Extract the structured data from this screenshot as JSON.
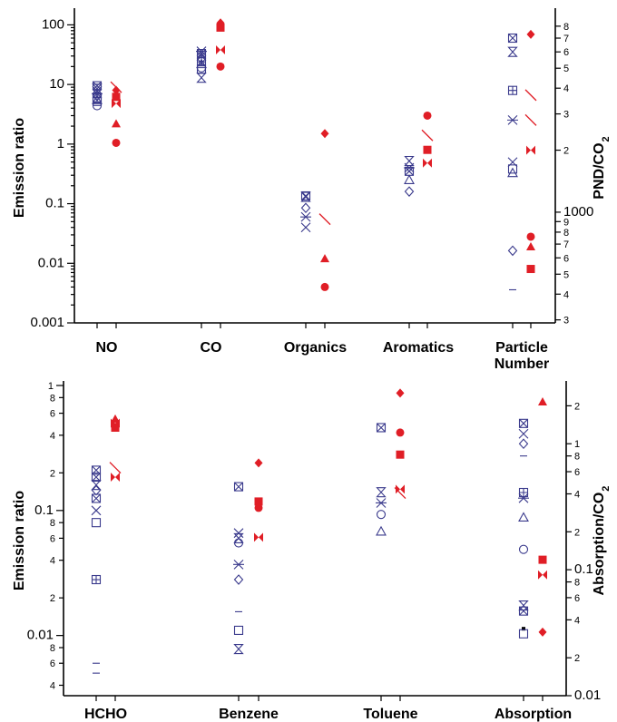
{
  "colors": {
    "blue": "#3a3a8c",
    "red": "#e01e26",
    "axis": "#000000"
  },
  "chart_data": [
    {
      "type": "scatter",
      "categories": [
        "NO",
        "CO",
        "Organics",
        "Aromatics",
        "Particle\nNumber"
      ],
      "category_lines": [
        [
          "NO"
        ],
        [
          "CO"
        ],
        [
          "Organics"
        ],
        [
          "Aromatics"
        ],
        [
          "Particle",
          "Number"
        ]
      ],
      "ylabel": "Emission ratio",
      "y2label": "PND/CO",
      "y2label_sub": "2",
      "log_y": true,
      "ylim": [
        0.001,
        160
      ],
      "yticks": [
        {
          "v": 0.001,
          "t": "0.001"
        },
        {
          "v": 0.01,
          "t": "0.01"
        },
        {
          "v": 0.1,
          "t": "0.1"
        },
        {
          "v": 1,
          "t": "1"
        },
        {
          "v": 10,
          "t": "10"
        },
        {
          "v": 100,
          "t": "100"
        }
      ],
      "y2lim": [
        290,
        9300
      ],
      "y2ticks": [
        {
          "v": 300,
          "t": "3"
        },
        {
          "v": 400,
          "t": "4"
        },
        {
          "v": 500,
          "t": "5"
        },
        {
          "v": 600,
          "t": "6"
        },
        {
          "v": 700,
          "t": "7"
        },
        {
          "v": 800,
          "t": "8"
        },
        {
          "v": 900,
          "t": "9"
        },
        {
          "v": 1000,
          "t": "1000"
        },
        {
          "v": 2000,
          "t": "2"
        },
        {
          "v": 3000,
          "t": "3"
        },
        {
          "v": 4000,
          "t": "4"
        },
        {
          "v": 5000,
          "t": "5"
        },
        {
          "v": 6000,
          "t": "6"
        },
        {
          "v": 7000,
          "t": "7"
        },
        {
          "v": 8000,
          "t": "8"
        }
      ],
      "points": [
        {
          "cat": 0,
          "side": "blue",
          "marker": "boxx",
          "y": 9.5
        },
        {
          "cat": 0,
          "side": "blue",
          "marker": "hourglass",
          "y": 8.5
        },
        {
          "cat": 0,
          "side": "blue",
          "marker": "x",
          "y": 7.8
        },
        {
          "cat": 0,
          "side": "blue",
          "marker": "asterisk",
          "y": 7.0
        },
        {
          "cat": 0,
          "side": "blue",
          "marker": "diamond",
          "y": 6.4
        },
        {
          "cat": 0,
          "side": "blue",
          "marker": "boxplus",
          "y": 6.0
        },
        {
          "cat": 0,
          "side": "blue",
          "marker": "triangle",
          "y": 5.5
        },
        {
          "cat": 0,
          "side": "blue",
          "marker": "square",
          "y": 5.2
        },
        {
          "cat": 0,
          "side": "blue",
          "marker": "dash",
          "y": 4.9
        },
        {
          "cat": 0,
          "side": "blue",
          "marker": "circle",
          "y": 4.4
        },
        {
          "cat": 0,
          "side": "red",
          "marker": "slash",
          "y": 9.0
        },
        {
          "cat": 0,
          "side": "red",
          "marker": "diamond",
          "y": 8.0
        },
        {
          "cat": 0,
          "side": "red",
          "marker": "square",
          "y": 6.2
        },
        {
          "cat": 0,
          "side": "red",
          "marker": "bowtie",
          "y": 4.8
        },
        {
          "cat": 0,
          "side": "red",
          "marker": "triangle",
          "y": 2.2
        },
        {
          "cat": 0,
          "side": "red",
          "marker": "circle",
          "y": 1.05
        },
        {
          "cat": 1,
          "side": "blue",
          "marker": "asterisk",
          "y": 36
        },
        {
          "cat": 1,
          "side": "blue",
          "marker": "boxx",
          "y": 33
        },
        {
          "cat": 1,
          "side": "blue",
          "marker": "x",
          "y": 30
        },
        {
          "cat": 1,
          "side": "blue",
          "marker": "diamond",
          "y": 27
        },
        {
          "cat": 1,
          "side": "blue",
          "marker": "boxplus",
          "y": 24
        },
        {
          "cat": 1,
          "side": "blue",
          "marker": "triangle",
          "y": 22
        },
        {
          "cat": 1,
          "side": "blue",
          "marker": "circle",
          "y": 19
        },
        {
          "cat": 1,
          "side": "blue",
          "marker": "square",
          "y": 18
        },
        {
          "cat": 1,
          "side": "blue",
          "marker": "hourglass",
          "y": 13
        },
        {
          "cat": 1,
          "side": "red",
          "marker": "diamond",
          "y": 108
        },
        {
          "cat": 1,
          "side": "red",
          "marker": "square",
          "y": 90
        },
        {
          "cat": 1,
          "side": "red",
          "marker": "bowtie",
          "y": 38
        },
        {
          "cat": 1,
          "side": "red",
          "marker": "circle",
          "y": 20
        },
        {
          "cat": 2,
          "side": "blue",
          "marker": "boxx",
          "y": 0.135
        },
        {
          "cat": 2,
          "side": "blue",
          "marker": "hourglass",
          "y": 0.13
        },
        {
          "cat": 2,
          "side": "blue",
          "marker": "diamond",
          "y": 0.085
        },
        {
          "cat": 2,
          "side": "blue",
          "marker": "asterisk",
          "y": 0.06
        },
        {
          "cat": 2,
          "side": "blue",
          "marker": "x",
          "y": 0.04
        },
        {
          "cat": 2,
          "side": "red",
          "marker": "diamond",
          "y": 1.5
        },
        {
          "cat": 2,
          "side": "red",
          "marker": "slash",
          "y": 0.055
        },
        {
          "cat": 2,
          "side": "red",
          "marker": "triangle",
          "y": 0.012
        },
        {
          "cat": 2,
          "side": "red",
          "marker": "circle",
          "y": 0.004
        },
        {
          "cat": 3,
          "side": "blue",
          "marker": "hourglass",
          "y": 0.52
        },
        {
          "cat": 3,
          "side": "blue",
          "marker": "asterisk",
          "y": 0.4
        },
        {
          "cat": 3,
          "side": "blue",
          "marker": "boxx",
          "y": 0.35
        },
        {
          "cat": 3,
          "side": "blue",
          "marker": "triangle",
          "y": 0.25
        },
        {
          "cat": 3,
          "side": "blue",
          "marker": "diamond",
          "y": 0.16
        },
        {
          "cat": 3,
          "side": "red",
          "marker": "circle",
          "y": 3.0
        },
        {
          "cat": 3,
          "side": "red",
          "marker": "slash",
          "y": 1.4
        },
        {
          "cat": 3,
          "side": "red",
          "marker": "square",
          "y": 0.8
        },
        {
          "cat": 3,
          "side": "red",
          "marker": "bowtie",
          "y": 0.48
        }
      ],
      "points_right": [
        {
          "cat": 4,
          "side": "blue",
          "marker": "boxx",
          "y2": 7000
        },
        {
          "cat": 4,
          "side": "blue",
          "marker": "hourglass",
          "y2": 6000
        },
        {
          "cat": 4,
          "side": "blue",
          "marker": "boxplus",
          "y2": 3900
        },
        {
          "cat": 4,
          "side": "blue",
          "marker": "asterisk",
          "y2": 2800
        },
        {
          "cat": 4,
          "side": "blue",
          "marker": "x",
          "y2": 1750
        },
        {
          "cat": 4,
          "side": "blue",
          "marker": "square",
          "y2": 1620
        },
        {
          "cat": 4,
          "side": "blue",
          "marker": "triangle",
          "y2": 1550
        },
        {
          "cat": 4,
          "side": "blue",
          "marker": "diamond",
          "y2": 650
        },
        {
          "cat": 4,
          "side": "blue",
          "marker": "dash",
          "y2": 420
        },
        {
          "cat": 4,
          "side": "red",
          "marker": "diamond",
          "y2": 7300
        },
        {
          "cat": 4,
          "side": "red",
          "marker": "slash",
          "y2": 3700
        },
        {
          "cat": 4,
          "side": "red",
          "marker": "slash",
          "y2": 2800
        },
        {
          "cat": 4,
          "side": "red",
          "marker": "bowtie",
          "y2": 2000
        },
        {
          "cat": 4,
          "side": "red",
          "marker": "circle",
          "y2": 760
        },
        {
          "cat": 4,
          "side": "red",
          "marker": "triangle",
          "y2": 680
        },
        {
          "cat": 4,
          "side": "red",
          "marker": "square",
          "y2": 530
        }
      ]
    },
    {
      "type": "scatter",
      "categories": [
        "HCHO",
        "Benzene",
        "Toluene",
        "Absorption"
      ],
      "category_lines": [
        [
          "HCHO"
        ],
        [
          "Benzene"
        ],
        [
          "Toluene"
        ],
        [
          "Absorption"
        ]
      ],
      "ylabel": "Emission ratio",
      "y2label": "Absorption/CO",
      "y2label_sub": "2",
      "log_y": true,
      "ylim": [
        0.0033,
        1.0
      ],
      "yticks": [
        {
          "v": 0.004,
          "t": "4"
        },
        {
          "v": 0.006,
          "t": "6"
        },
        {
          "v": 0.008,
          "t": "8"
        },
        {
          "v": 0.01,
          "t": "0.01"
        },
        {
          "v": 0.02,
          "t": "2"
        },
        {
          "v": 0.04,
          "t": "4"
        },
        {
          "v": 0.06,
          "t": "6"
        },
        {
          "v": 0.08,
          "t": "8"
        },
        {
          "v": 0.1,
          "t": "0.1"
        },
        {
          "v": 0.2,
          "t": "2"
        },
        {
          "v": 0.4,
          "t": "4"
        },
        {
          "v": 0.6,
          "t": "6"
        },
        {
          "v": 0.8,
          "t": "8"
        },
        {
          "v": 1.0,
          "t": "1"
        }
      ],
      "y2lim": [
        0.01,
        2.9
      ],
      "y2ticks": [
        {
          "v": 0.01,
          "t": "0.01"
        },
        {
          "v": 0.02,
          "t": "2"
        },
        {
          "v": 0.04,
          "t": "4"
        },
        {
          "v": 0.06,
          "t": "6"
        },
        {
          "v": 0.08,
          "t": "8"
        },
        {
          "v": 0.1,
          "t": "0.1"
        },
        {
          "v": 0.2,
          "t": "2"
        },
        {
          "v": 0.4,
          "t": "4"
        },
        {
          "v": 0.6,
          "t": "6"
        },
        {
          "v": 0.8,
          "t": "8"
        },
        {
          "v": 1.0,
          "t": "1"
        },
        {
          "v": 2.0,
          "t": "2"
        }
      ],
      "points": [
        {
          "cat": 0,
          "side": "blue",
          "marker": "boxx",
          "y": 0.21
        },
        {
          "cat": 0,
          "side": "blue",
          "marker": "boxx",
          "y": 0.185
        },
        {
          "cat": 0,
          "side": "blue",
          "marker": "hourglass",
          "y": 0.16
        },
        {
          "cat": 0,
          "side": "blue",
          "marker": "diamond",
          "y": 0.145
        },
        {
          "cat": 0,
          "side": "blue",
          "marker": "boxx",
          "y": 0.125
        },
        {
          "cat": 0,
          "side": "blue",
          "marker": "x",
          "y": 0.1
        },
        {
          "cat": 0,
          "side": "blue",
          "marker": "square",
          "y": 0.08
        },
        {
          "cat": 0,
          "side": "blue",
          "marker": "boxplus",
          "y": 0.028
        },
        {
          "cat": 0,
          "side": "blue",
          "marker": "dash",
          "y": 0.006
        },
        {
          "cat": 0,
          "side": "blue",
          "marker": "dash",
          "y": 0.005
        },
        {
          "cat": 0,
          "side": "red",
          "marker": "triangle",
          "y": 0.54
        },
        {
          "cat": 0,
          "side": "red",
          "marker": "bowtie",
          "y": 0.5
        },
        {
          "cat": 0,
          "side": "red",
          "marker": "square",
          "y": 0.46
        },
        {
          "cat": 0,
          "side": "red",
          "marker": "slash",
          "y": 0.22
        },
        {
          "cat": 0,
          "side": "red",
          "marker": "bowtie",
          "y": 0.185
        },
        {
          "cat": 1,
          "side": "blue",
          "marker": "boxx",
          "y": 0.155
        },
        {
          "cat": 1,
          "side": "blue",
          "marker": "x",
          "y": 0.066
        },
        {
          "cat": 1,
          "side": "blue",
          "marker": "hourglass",
          "y": 0.06
        },
        {
          "cat": 1,
          "side": "blue",
          "marker": "circle",
          "y": 0.055
        },
        {
          "cat": 1,
          "side": "blue",
          "marker": "asterisk",
          "y": 0.037
        },
        {
          "cat": 1,
          "side": "blue",
          "marker": "diamond",
          "y": 0.028
        },
        {
          "cat": 1,
          "side": "blue",
          "marker": "dash",
          "y": 0.0155
        },
        {
          "cat": 1,
          "side": "blue",
          "marker": "square",
          "y": 0.011
        },
        {
          "cat": 1,
          "side": "blue",
          "marker": "hourglass",
          "y": 0.0078
        },
        {
          "cat": 1,
          "side": "red",
          "marker": "diamond",
          "y": 0.24
        },
        {
          "cat": 1,
          "side": "red",
          "marker": "square",
          "y": 0.118
        },
        {
          "cat": 1,
          "side": "red",
          "marker": "circle",
          "y": 0.105
        },
        {
          "cat": 1,
          "side": "red",
          "marker": "bowtie",
          "y": 0.061
        },
        {
          "cat": 2,
          "side": "blue",
          "marker": "boxx",
          "y": 0.46
        },
        {
          "cat": 2,
          "side": "blue",
          "marker": "hourglass",
          "y": 0.14
        },
        {
          "cat": 2,
          "side": "blue",
          "marker": "asterisk",
          "y": 0.115
        },
        {
          "cat": 2,
          "side": "blue",
          "marker": "circle",
          "y": 0.093
        },
        {
          "cat": 2,
          "side": "blue",
          "marker": "triangle",
          "y": 0.068
        },
        {
          "cat": 2,
          "side": "red",
          "marker": "diamond",
          "y": 0.87
        },
        {
          "cat": 2,
          "side": "red",
          "marker": "circle",
          "y": 0.42
        },
        {
          "cat": 2,
          "side": "red",
          "marker": "square",
          "y": 0.28
        },
        {
          "cat": 2,
          "side": "red",
          "marker": "bowtie",
          "y": 0.148
        },
        {
          "cat": 2,
          "side": "red",
          "marker": "slash",
          "y": 0.138
        }
      ],
      "points_right": [
        {
          "cat": 3,
          "side": "blue",
          "marker": "boxx",
          "y2": 1.45
        },
        {
          "cat": 3,
          "side": "blue",
          "marker": "x",
          "y2": 1.2
        },
        {
          "cat": 3,
          "side": "blue",
          "marker": "diamond",
          "y2": 1.0
        },
        {
          "cat": 3,
          "side": "blue",
          "marker": "dash",
          "y2": 0.8
        },
        {
          "cat": 3,
          "side": "blue",
          "marker": "boxplus",
          "y2": 0.41
        },
        {
          "cat": 3,
          "side": "blue",
          "marker": "asterisk",
          "y2": 0.37
        },
        {
          "cat": 3,
          "side": "blue",
          "marker": "triangle",
          "y2": 0.26
        },
        {
          "cat": 3,
          "side": "blue",
          "marker": "circle",
          "y2": 0.145
        },
        {
          "cat": 3,
          "side": "blue",
          "marker": "hourglass",
          "y2": 0.052
        },
        {
          "cat": 3,
          "side": "blue",
          "marker": "boxx",
          "y2": 0.047
        },
        {
          "cat": 3,
          "side": "blue",
          "marker": "dotblack",
          "y2": 0.034
        },
        {
          "cat": 3,
          "side": "blue",
          "marker": "square",
          "y2": 0.031
        },
        {
          "cat": 3,
          "side": "red",
          "marker": "triangle",
          "y2": 2.15
        },
        {
          "cat": 3,
          "side": "red",
          "marker": "square",
          "y2": 0.12
        },
        {
          "cat": 3,
          "side": "red",
          "marker": "bowtie",
          "y2": 0.091
        },
        {
          "cat": 3,
          "side": "red",
          "marker": "diamond",
          "y2": 0.032
        }
      ]
    }
  ]
}
